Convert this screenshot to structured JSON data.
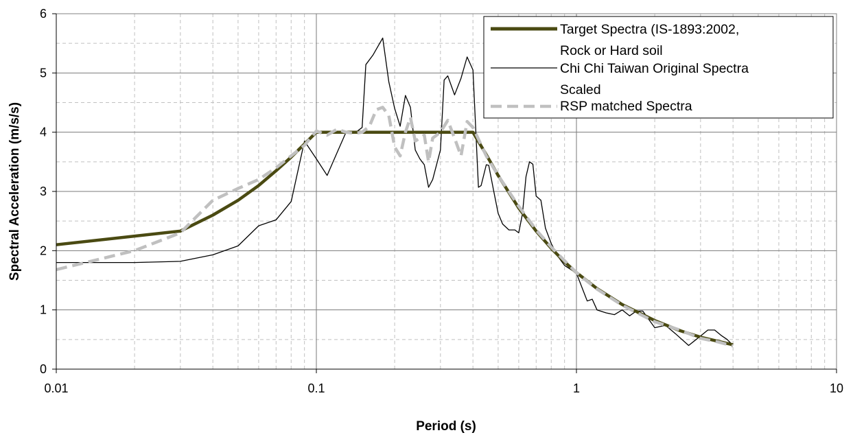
{
  "chart_data": {
    "type": "line",
    "title": "",
    "xlabel": "Period (s)",
    "ylabel": "Spectral Acceleration (m/s/s)",
    "xscale": "log",
    "xlim": [
      0.01,
      10
    ],
    "ylim": [
      0,
      6
    ],
    "x_ticks": [
      "0.01",
      "0.1",
      "1",
      "10"
    ],
    "y_ticks": [
      "0",
      "1",
      "2",
      "3",
      "4",
      "5",
      "6"
    ],
    "grid": "major solid, minor dashed",
    "legend": {
      "placement": "top-right",
      "entries": [
        {
          "line1": "Target Spectra (IS-1893:2002,",
          "line2": "Rock or Hard soil"
        },
        {
          "line1": "Chi Chi Taiwan Original Spectra",
          "line2": "Scaled"
        },
        {
          "line1": "RSP matched Spectra",
          "line2": ""
        }
      ]
    },
    "series": [
      {
        "key": "target",
        "color": "#4a4a12",
        "style": "thick-solid",
        "points": [
          [
            0.01,
            2.1
          ],
          [
            0.03,
            2.33
          ],
          [
            0.04,
            2.6
          ],
          [
            0.05,
            2.85
          ],
          [
            0.06,
            3.1
          ],
          [
            0.07,
            3.35
          ],
          [
            0.08,
            3.58
          ],
          [
            0.09,
            3.8
          ],
          [
            0.1,
            4.0
          ],
          [
            0.15,
            4.0
          ],
          [
            0.2,
            4.0
          ],
          [
            0.3,
            4.0
          ],
          [
            0.4,
            4.0
          ],
          [
            0.45,
            3.62
          ],
          [
            0.5,
            3.27
          ],
          [
            0.6,
            2.72
          ],
          [
            0.7,
            2.33
          ],
          [
            0.8,
            2.04
          ],
          [
            0.9,
            1.81
          ],
          [
            1.0,
            1.63
          ],
          [
            1.2,
            1.36
          ],
          [
            1.5,
            1.09
          ],
          [
            2.0,
            0.82
          ],
          [
            2.5,
            0.65
          ],
          [
            3.0,
            0.54
          ],
          [
            4.0,
            0.41
          ]
        ]
      },
      {
        "key": "original",
        "color": "#000000",
        "style": "thin-solid",
        "points": [
          [
            0.01,
            1.8
          ],
          [
            0.02,
            1.8
          ],
          [
            0.03,
            1.82
          ],
          [
            0.04,
            1.93
          ],
          [
            0.05,
            2.08
          ],
          [
            0.06,
            2.42
          ],
          [
            0.07,
            2.52
          ],
          [
            0.08,
            2.83
          ],
          [
            0.09,
            3.85
          ],
          [
            0.1,
            3.55
          ],
          [
            0.11,
            3.27
          ],
          [
            0.12,
            3.65
          ],
          [
            0.13,
            4.0
          ],
          [
            0.14,
            3.98
          ],
          [
            0.15,
            4.08
          ],
          [
            0.155,
            5.14
          ],
          [
            0.165,
            5.3
          ],
          [
            0.17,
            5.4
          ],
          [
            0.18,
            5.59
          ],
          [
            0.19,
            4.85
          ],
          [
            0.2,
            4.4
          ],
          [
            0.21,
            4.1
          ],
          [
            0.22,
            4.62
          ],
          [
            0.23,
            4.42
          ],
          [
            0.24,
            3.7
          ],
          [
            0.25,
            3.55
          ],
          [
            0.26,
            3.45
          ],
          [
            0.27,
            3.07
          ],
          [
            0.28,
            3.2
          ],
          [
            0.3,
            3.7
          ],
          [
            0.31,
            4.88
          ],
          [
            0.32,
            4.95
          ],
          [
            0.34,
            4.63
          ],
          [
            0.36,
            4.91
          ],
          [
            0.38,
            5.27
          ],
          [
            0.4,
            5.05
          ],
          [
            0.42,
            3.07
          ],
          [
            0.43,
            3.1
          ],
          [
            0.45,
            3.45
          ],
          [
            0.46,
            3.44
          ],
          [
            0.48,
            3.02
          ],
          [
            0.5,
            2.63
          ],
          [
            0.52,
            2.45
          ],
          [
            0.55,
            2.35
          ],
          [
            0.58,
            2.35
          ],
          [
            0.6,
            2.3
          ],
          [
            0.62,
            2.62
          ],
          [
            0.64,
            3.25
          ],
          [
            0.66,
            3.5
          ],
          [
            0.68,
            3.46
          ],
          [
            0.7,
            2.92
          ],
          [
            0.73,
            2.85
          ],
          [
            0.76,
            2.38
          ],
          [
            0.8,
            2.12
          ],
          [
            0.85,
            1.9
          ],
          [
            0.9,
            1.75
          ],
          [
            1.0,
            1.62
          ],
          [
            1.05,
            1.38
          ],
          [
            1.1,
            1.15
          ],
          [
            1.15,
            1.18
          ],
          [
            1.2,
            1.0
          ],
          [
            1.3,
            0.95
          ],
          [
            1.4,
            0.92
          ],
          [
            1.5,
            1.0
          ],
          [
            1.6,
            0.9
          ],
          [
            1.7,
            0.98
          ],
          [
            1.8,
            0.98
          ],
          [
            2.0,
            0.7
          ],
          [
            2.2,
            0.74
          ],
          [
            2.4,
            0.6
          ],
          [
            2.7,
            0.4
          ],
          [
            3.0,
            0.56
          ],
          [
            3.2,
            0.66
          ],
          [
            3.4,
            0.66
          ],
          [
            3.6,
            0.57
          ],
          [
            3.8,
            0.5
          ],
          [
            4.0,
            0.4
          ]
        ]
      },
      {
        "key": "rsp",
        "color": "#c0c0c0",
        "style": "thick-dashed",
        "points": [
          [
            0.01,
            1.68
          ],
          [
            0.02,
            2.0
          ],
          [
            0.03,
            2.3
          ],
          [
            0.04,
            2.85
          ],
          [
            0.05,
            3.05
          ],
          [
            0.06,
            3.2
          ],
          [
            0.07,
            3.4
          ],
          [
            0.08,
            3.6
          ],
          [
            0.09,
            3.78
          ],
          [
            0.1,
            4.02
          ],
          [
            0.11,
            3.95
          ],
          [
            0.12,
            4.05
          ],
          [
            0.13,
            4.0
          ],
          [
            0.14,
            3.98
          ],
          [
            0.15,
            4.0
          ],
          [
            0.16,
            4.1
          ],
          [
            0.17,
            4.38
          ],
          [
            0.18,
            4.42
          ],
          [
            0.19,
            4.28
          ],
          [
            0.2,
            3.75
          ],
          [
            0.21,
            3.6
          ],
          [
            0.22,
            4.0
          ],
          [
            0.23,
            4.25
          ],
          [
            0.24,
            3.85
          ],
          [
            0.26,
            3.95
          ],
          [
            0.27,
            3.5
          ],
          [
            0.28,
            3.9
          ],
          [
            0.3,
            4.0
          ],
          [
            0.32,
            4.2
          ],
          [
            0.34,
            3.9
          ],
          [
            0.36,
            3.6
          ],
          [
            0.38,
            4.18
          ],
          [
            0.4,
            4.08
          ],
          [
            0.45,
            3.6
          ],
          [
            0.5,
            3.27
          ],
          [
            0.6,
            2.75
          ],
          [
            0.7,
            2.35
          ],
          [
            0.8,
            2.06
          ],
          [
            0.9,
            1.83
          ],
          [
            1.0,
            1.63
          ],
          [
            1.2,
            1.35
          ],
          [
            1.5,
            1.08
          ],
          [
            2.0,
            0.8
          ],
          [
            2.5,
            0.66
          ],
          [
            3.0,
            0.52
          ],
          [
            3.5,
            0.46
          ],
          [
            4.0,
            0.39
          ]
        ]
      }
    ]
  }
}
